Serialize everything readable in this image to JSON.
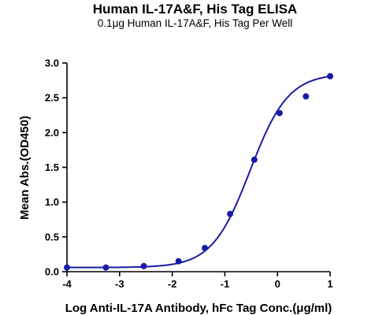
{
  "chart_data": {
    "type": "scatter",
    "title": "Human IL-17A&F, His Tag ELISA",
    "subtitle": "0.1μg Human IL-17A&F, His Tag Per Well",
    "xlabel": "Log Anti-IL-17A Antibody, hFc Tag Conc.(μg/ml)",
    "ylabel": "Mean Abs.(OD450)",
    "xlim": [
      -4,
      1
    ],
    "ylim": [
      0,
      3.0
    ],
    "xticks": [
      -4,
      -3,
      -2,
      -1,
      0,
      1
    ],
    "yticks": [
      0.0,
      0.5,
      1.0,
      1.5,
      2.0,
      2.5,
      3.0
    ],
    "xtick_labels": [
      "-4",
      "-3",
      "-2",
      "-1",
      "0",
      "1"
    ],
    "ytick_labels": [
      "0.0",
      "0.5",
      "1.0",
      "1.5",
      "2.0",
      "2.5",
      "3.0"
    ],
    "grid": false,
    "series": [
      {
        "x": [
          -4.0,
          -3.26,
          -2.54,
          -1.88,
          -1.38,
          -0.9,
          -0.44,
          0.04,
          0.54,
          1.0
        ],
        "y": [
          0.06,
          0.06,
          0.08,
          0.15,
          0.34,
          0.83,
          1.61,
          2.28,
          2.52,
          2.81
        ],
        "color": "#1a1aa6",
        "fit_curve": "four-parameter logistic"
      }
    ]
  }
}
